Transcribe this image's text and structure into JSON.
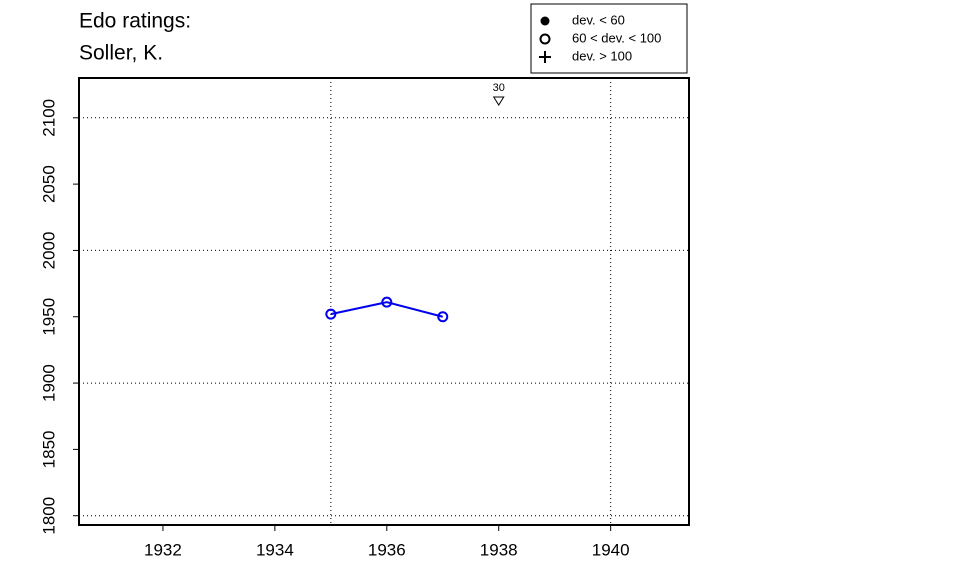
{
  "chart_data": {
    "type": "line",
    "title": [
      "Edo ratings:",
      "Soller, K."
    ],
    "series": [
      {
        "color": "#0000ee",
        "marker": "open-circle",
        "x": [
          1935,
          1936,
          1937
        ],
        "values": [
          1952,
          1961,
          1950
        ]
      }
    ],
    "xlim": [
      1930.5,
      1941.4
    ],
    "xticks": [
      1932,
      1934,
      1936,
      1938,
      1940
    ],
    "ylim": [
      1793,
      2130
    ],
    "yticks": [
      1800,
      1850,
      1900,
      1950,
      2000,
      2050,
      2100
    ],
    "xgrid": [
      1935,
      1940
    ],
    "ygrid": [
      1800,
      1900,
      2000,
      2100
    ],
    "annotations": [
      {
        "x": 1938,
        "label": "30",
        "marker": "down-triangle"
      }
    ],
    "legend": [
      {
        "label": "dev. < 60",
        "marker": "filled-circle"
      },
      {
        "label": "60 < dev. < 100",
        "marker": "open-circle"
      },
      {
        "label": "dev. > 100",
        "marker": "plus"
      }
    ]
  }
}
